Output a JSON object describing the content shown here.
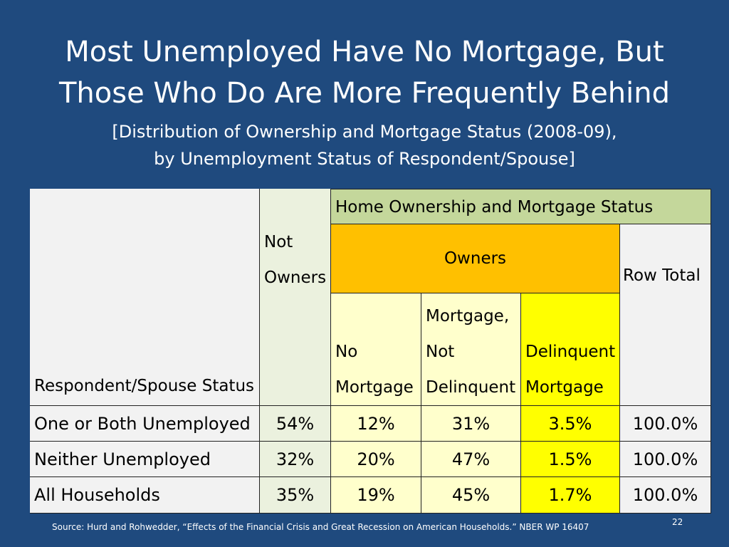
{
  "slide": {
    "title_line1": "Most Unemployed Have No Mortgage, But",
    "title_line2": "Those Who Do Are More Frequently Behind",
    "subtitle_line1": "[Distribution of Ownership and Mortgage Status (2008-09),",
    "subtitle_line2": "by Unemployment Status of Respondent/Spouse]",
    "source": "Source: Hurd and Rohwedder, “Effects of the Financial Crisis and Great Recession on American Households.” NBER WP 16407",
    "page_number": "22"
  },
  "table": {
    "group_header": "Home Ownership and Mortgage Status",
    "row_header": "Respondent/Spouse Status",
    "not_owners": [
      "Not",
      "Owners"
    ],
    "owners": "Owners",
    "row_total": "Row Total",
    "no_mortgage": [
      "No",
      "Mortgage"
    ],
    "mortgage_not_delinquent": [
      "Mortgage,",
      "Not",
      "Delinquent"
    ],
    "delinquent_mortgage": [
      "Delinquent",
      "Mortgage"
    ],
    "rows": [
      {
        "label": "One or Both Unemployed",
        "not_owners": "54%",
        "no_mortgage": "12%",
        "not_delinquent": "31%",
        "delinquent": "3.5%",
        "total": "100.0%"
      },
      {
        "label": "Neither Unemployed",
        "not_owners": "32%",
        "no_mortgage": "20%",
        "not_delinquent": "47%",
        "delinquent": "1.5%",
        "total": "100.0%"
      },
      {
        "label": "All Households",
        "not_owners": "35%",
        "no_mortgage": "19%",
        "not_delinquent": "45%",
        "delinquent": "1.7%",
        "total": "100.0%"
      }
    ]
  },
  "colors": {
    "background": "#1f4a7e",
    "group_header": "#c4d79b",
    "owners": "#ffc000",
    "delinquent": "#ffff00",
    "light_yellow": "#ffffcc"
  }
}
